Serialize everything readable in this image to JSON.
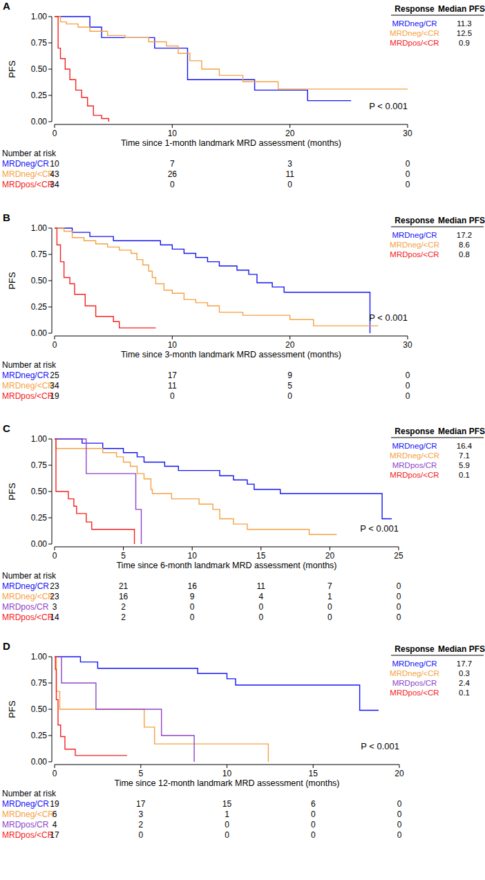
{
  "chart_data": [
    {
      "type": "line",
      "line_style": "step",
      "panel": "A",
      "y_label": "PFS",
      "x_label": "Time since 1-month landmark MRD assessment (months)",
      "xlim": [
        0,
        30
      ],
      "xticks": [
        0,
        10,
        20,
        30
      ],
      "ylim": [
        0,
        1
      ],
      "yticks": [
        {
          "value": 0,
          "label": "0.00"
        },
        {
          "value": 0.25,
          "label": "0.25"
        },
        {
          "value": 0.5,
          "label": "0.50"
        },
        {
          "value": 0.75,
          "label": "0.75"
        },
        {
          "value": 1,
          "label": "1.00"
        }
      ],
      "annotation": "P < 0.001",
      "table_headers": [
        "Response",
        "Median PFS"
      ],
      "risk_table_title": "Number at risk",
      "series": [
        {
          "name": "MRDneg/CR",
          "color": "#1414f5",
          "median_pfs": 11.3,
          "at_risk": [
            10,
            7,
            3,
            0
          ],
          "x": [
            0,
            3,
            4,
            8.5,
            11.3,
            17,
            21.5,
            25.2
          ],
          "values": [
            1,
            0.9,
            0.8,
            0.7,
            0.4,
            0.3,
            0.2,
            0.2
          ]
        },
        {
          "name": "MRDneg/<CR",
          "color": "#f5a142",
          "median_pfs": 12.5,
          "at_risk": [
            43,
            26,
            11,
            0
          ],
          "x": [
            0,
            0.5,
            1,
            2,
            3,
            4.5,
            6,
            8,
            9.5,
            10.5,
            11.5,
            12.5,
            14,
            16,
            19,
            30
          ],
          "values": [
            1,
            0.95,
            0.93,
            0.9,
            0.86,
            0.82,
            0.8,
            0.76,
            0.72,
            0.65,
            0.58,
            0.5,
            0.44,
            0.38,
            0.31,
            0.31
          ]
        },
        {
          "name": "MRDpos/<CR",
          "color": "#f52020",
          "median_pfs": 0.9,
          "at_risk": [
            34,
            0,
            0,
            0
          ],
          "x": [
            0,
            0.3,
            0.5,
            0.9,
            1.3,
            1.8,
            2.3,
            2.8,
            3.3,
            4,
            4.6
          ],
          "values": [
            1,
            0.7,
            0.6,
            0.5,
            0.4,
            0.3,
            0.23,
            0.15,
            0.06,
            0.03,
            0
          ]
        }
      ]
    },
    {
      "type": "line",
      "line_style": "step",
      "panel": "B",
      "y_label": "PFS",
      "x_label": "Time since 3-month landmark MRD assessment (months)",
      "xlim": [
        0,
        30
      ],
      "xticks": [
        0,
        10,
        20,
        30
      ],
      "ylim": [
        0,
        1
      ],
      "yticks": [
        {
          "value": 0,
          "label": "0.00"
        },
        {
          "value": 0.25,
          "label": "0.25"
        },
        {
          "value": 0.5,
          "label": "0.50"
        },
        {
          "value": 0.75,
          "label": "0.75"
        },
        {
          "value": 1,
          "label": "1.00"
        }
      ],
      "annotation": "P < 0.001",
      "table_headers": [
        "Response",
        "Median PFS"
      ],
      "risk_table_title": "Number at risk",
      "series": [
        {
          "name": "MRDneg/CR",
          "color": "#1414f5",
          "median_pfs": 17.2,
          "at_risk": [
            25,
            17,
            9,
            0
          ],
          "x": [
            0,
            1.5,
            3,
            5,
            9,
            10,
            11,
            12,
            13,
            14,
            15.5,
            16.5,
            17.2,
            18.5,
            19.5,
            26.8
          ],
          "values": [
            1,
            0.96,
            0.92,
            0.88,
            0.84,
            0.8,
            0.76,
            0.72,
            0.68,
            0.64,
            0.6,
            0.56,
            0.48,
            0.44,
            0.39,
            0
          ]
        },
        {
          "name": "MRDneg/<CR",
          "color": "#f5a142",
          "median_pfs": 8.6,
          "at_risk": [
            34,
            11,
            5,
            0
          ],
          "x": [
            0,
            0.8,
            1.5,
            2.5,
            3.5,
            4.5,
            5.5,
            6.5,
            7,
            7.5,
            8,
            8.3,
            8.6,
            9.3,
            10,
            11,
            12,
            13,
            14,
            16,
            20,
            22,
            27.5
          ],
          "values": [
            1,
            0.97,
            0.91,
            0.88,
            0.85,
            0.82,
            0.79,
            0.76,
            0.7,
            0.65,
            0.59,
            0.53,
            0.47,
            0.41,
            0.38,
            0.32,
            0.29,
            0.26,
            0.2,
            0.17,
            0.13,
            0.07,
            0.07
          ]
        },
        {
          "name": "MRDpos/<CR",
          "color": "#f52020",
          "median_pfs": 0.8,
          "at_risk": [
            19,
            0,
            0,
            0
          ],
          "x": [
            0,
            0.2,
            0.5,
            0.8,
            1.3,
            1.7,
            2.6,
            3.5,
            5,
            5.5,
            8.6
          ],
          "values": [
            1,
            0.84,
            0.68,
            0.53,
            0.47,
            0.37,
            0.26,
            0.16,
            0.11,
            0.05,
            0.05
          ]
        }
      ]
    },
    {
      "type": "line",
      "line_style": "step",
      "panel": "C",
      "y_label": "PFS",
      "x_label": "Time since 6-month landmark MRD assessment (months)",
      "xlim": [
        0,
        25
      ],
      "xticks": [
        0,
        5,
        10,
        15,
        20,
        25
      ],
      "ylim": [
        0,
        1
      ],
      "yticks": [
        {
          "value": 0,
          "label": "0.00"
        },
        {
          "value": 0.25,
          "label": "0.25"
        },
        {
          "value": 0.5,
          "label": "0.50"
        },
        {
          "value": 0.75,
          "label": "0.75"
        },
        {
          "value": 1,
          "label": "1.00"
        }
      ],
      "annotation": "P < 0.001",
      "table_headers": [
        "Response",
        "Median PFS"
      ],
      "risk_table_title": "Number at risk",
      "series": [
        {
          "name": "MRDneg/CR",
          "color": "#1414f5",
          "median_pfs": 16.4,
          "at_risk": [
            23,
            21,
            16,
            11,
            7,
            0
          ],
          "x": [
            0,
            2,
            3.5,
            5,
            6,
            6.5,
            8,
            9,
            12,
            13,
            14,
            14.5,
            16.4,
            23.8,
            24.5
          ],
          "values": [
            1,
            0.96,
            0.91,
            0.87,
            0.83,
            0.78,
            0.74,
            0.7,
            0.65,
            0.61,
            0.57,
            0.52,
            0.48,
            0.24,
            0.24
          ]
        },
        {
          "name": "MRDneg/<CR",
          "color": "#f5a142",
          "median_pfs": 7.1,
          "at_risk": [
            23,
            16,
            9,
            4,
            1,
            0
          ],
          "x": [
            0,
            0.1,
            3.5,
            4.5,
            5,
            5.5,
            6,
            6.5,
            7,
            7.1,
            8.5,
            10.5,
            11.5,
            12,
            13,
            14,
            18.5,
            20.5
          ],
          "values": [
            1,
            0.91,
            0.87,
            0.83,
            0.78,
            0.74,
            0.67,
            0.62,
            0.52,
            0.48,
            0.43,
            0.38,
            0.33,
            0.24,
            0.19,
            0.14,
            0.09,
            0.09
          ]
        },
        {
          "name": "MRDpos/CR",
          "color": "#8e44c9",
          "median_pfs": 5.9,
          "at_risk": [
            3,
            2,
            0,
            0,
            0,
            0
          ],
          "x": [
            0,
            2.3,
            5.9,
            6.3
          ],
          "values": [
            1,
            0.67,
            0.33,
            0
          ]
        },
        {
          "name": "MRDpos/<CR",
          "color": "#f52020",
          "median_pfs": 0.1,
          "at_risk": [
            14,
            2,
            0,
            0,
            0,
            0
          ],
          "x": [
            0,
            0.1,
            1,
            1.4,
            1.6,
            2.3,
            2.7,
            5.8
          ],
          "values": [
            1,
            0.5,
            0.43,
            0.36,
            0.29,
            0.21,
            0.14,
            0
          ]
        }
      ]
    },
    {
      "type": "line",
      "line_style": "step",
      "panel": "D",
      "y_label": "PFS",
      "x_label": "Time since 12-month landmark MRD assessment (months)",
      "xlim": [
        0,
        20
      ],
      "xticks": [
        0,
        5,
        10,
        15,
        20
      ],
      "ylim": [
        0,
        1
      ],
      "yticks": [
        {
          "value": 0,
          "label": "0.00"
        },
        {
          "value": 0.25,
          "label": "0.25"
        },
        {
          "value": 0.5,
          "label": "0.50"
        },
        {
          "value": 0.75,
          "label": "0.75"
        },
        {
          "value": 1,
          "label": "1.00"
        }
      ],
      "annotation": "P < 0.001",
      "table_headers": [
        "Response",
        "Median PFS"
      ],
      "risk_table_title": "Number at risk",
      "series": [
        {
          "name": "MRDneg/CR",
          "color": "#1414f5",
          "median_pfs": 17.7,
          "at_risk": [
            19,
            17,
            15,
            6,
            0
          ],
          "x": [
            0,
            1.5,
            2.5,
            8.3,
            10,
            10.5,
            17.7,
            18.8
          ],
          "values": [
            1,
            0.95,
            0.89,
            0.84,
            0.79,
            0.73,
            0.49,
            0.49
          ]
        },
        {
          "name": "MRDneg/<CR",
          "color": "#f5a142",
          "median_pfs": 0.3,
          "at_risk": [
            6,
            3,
            1,
            0,
            0
          ],
          "x": [
            0,
            0.1,
            0.3,
            5.2,
            5.8,
            12.4
          ],
          "values": [
            1,
            0.67,
            0.5,
            0.33,
            0.17,
            0
          ]
        },
        {
          "name": "MRDpos/CR",
          "color": "#8e44c9",
          "median_pfs": 2.4,
          "at_risk": [
            4,
            2,
            0,
            0,
            0
          ],
          "x": [
            0,
            0.4,
            2.4,
            6.2,
            8.1
          ],
          "values": [
            1,
            0.75,
            0.5,
            0.25,
            0
          ]
        },
        {
          "name": "MRDpos/<CR",
          "color": "#f52020",
          "median_pfs": 0.1,
          "at_risk": [
            17,
            0,
            0,
            0,
            0
          ],
          "x": [
            0,
            0.05,
            0.1,
            0.2,
            0.35,
            0.6,
            1.2,
            4.2
          ],
          "values": [
            1,
            0.88,
            0.59,
            0.35,
            0.24,
            0.12,
            0.06,
            0.06
          ]
        }
      ]
    }
  ]
}
